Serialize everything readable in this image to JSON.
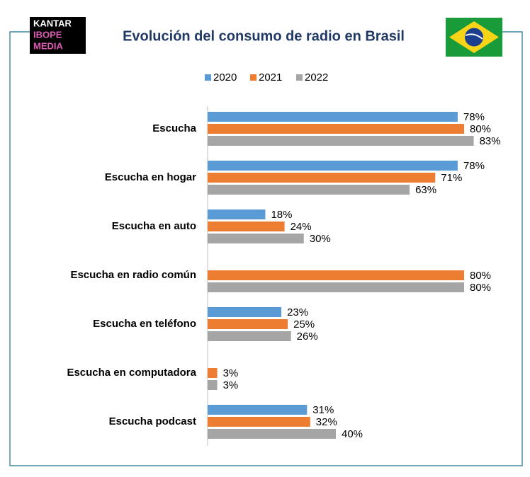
{
  "logo": [
    "KANTAR",
    "IBOPE",
    "MEDIA"
  ],
  "chart_data": {
    "type": "bar",
    "orientation": "horizontal",
    "title": "Evolución del consumo de radio en Brasil",
    "categories": [
      "Escucha",
      "Escucha en hogar",
      "Escucha en auto",
      "Escucha en radio común",
      "Escucha en teléfono",
      "Escucha en computadora",
      "Escucha podcast"
    ],
    "series": [
      {
        "name": "2020",
        "color": "#5b9bd5",
        "values": [
          78,
          78,
          18,
          null,
          23,
          null,
          31
        ],
        "value_labels": [
          "78%",
          "78%",
          "18%",
          null,
          "23%",
          null,
          "31%"
        ]
      },
      {
        "name": "2021",
        "color": "#ed7d31",
        "values": [
          80,
          71,
          24,
          80,
          25,
          3,
          32
        ],
        "value_labels": [
          "80%",
          "71%",
          "24%",
          "80%",
          "25%",
          "3%",
          "32%"
        ]
      },
      {
        "name": "2022",
        "color": "#a5a5a5",
        "values": [
          83,
          63,
          30,
          80,
          26,
          3,
          40
        ],
        "value_labels": [
          "83%",
          "63%",
          "30%",
          "80%",
          "26%",
          "3%",
          "40%"
        ]
      }
    ],
    "xlim": [
      0,
      100
    ],
    "legend": "top"
  }
}
